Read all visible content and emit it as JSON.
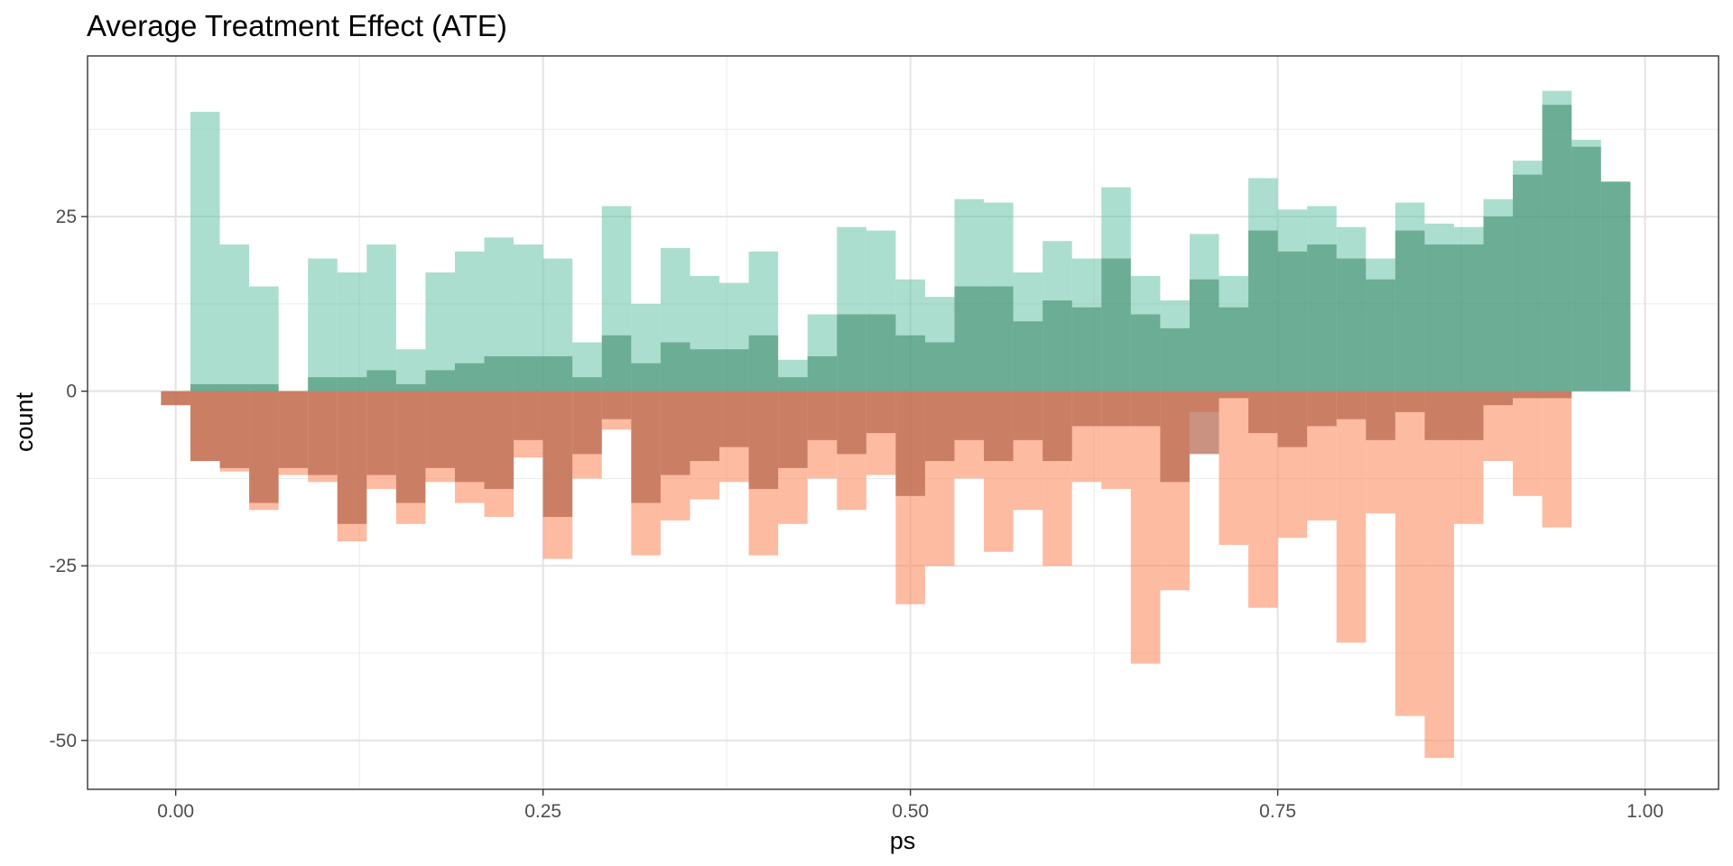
{
  "chart_data": {
    "type": "bar",
    "title": "Average Treatment Effect (ATE)",
    "xlabel": "ps",
    "ylabel": "count",
    "xlim": [
      -0.06,
      1.05
    ],
    "ylim": [
      -57,
      48
    ],
    "x_ticks": [
      {
        "value": 0.0,
        "label": "0.00"
      },
      {
        "value": 0.25,
        "label": "0.25"
      },
      {
        "value": 0.5,
        "label": "0.50"
      },
      {
        "value": 0.75,
        "label": "0.75"
      },
      {
        "value": 1.0,
        "label": "1.00"
      }
    ],
    "y_ticks": [
      {
        "value": 25,
        "label": "25"
      },
      {
        "value": 0,
        "label": "0"
      },
      {
        "value": -25,
        "label": "-25"
      },
      {
        "value": -50,
        "label": "-50"
      }
    ],
    "grid": true,
    "legend": "none",
    "bin_width": 0.02,
    "bin_starts": [
      -0.01,
      0.01,
      0.03,
      0.05,
      0.07,
      0.09,
      0.11,
      0.13,
      0.15,
      0.17,
      0.19,
      0.21,
      0.23,
      0.25,
      0.27,
      0.29,
      0.31,
      0.33,
      0.35,
      0.37,
      0.39,
      0.41,
      0.43,
      0.45,
      0.47,
      0.49,
      0.51,
      0.53,
      0.55,
      0.57,
      0.59,
      0.61,
      0.63,
      0.65,
      0.67,
      0.69,
      0.71,
      0.73,
      0.75,
      0.77,
      0.79,
      0.81,
      0.83,
      0.85,
      0.87,
      0.89,
      0.91,
      0.93,
      0.95,
      0.97
    ],
    "series": [
      {
        "key": "treated_weighted",
        "direction": "up",
        "color": "#66c2a5",
        "opacity": 0.55,
        "values": [
          0,
          40,
          21,
          15,
          0,
          19,
          17,
          21,
          6,
          17,
          20,
          22,
          21,
          19,
          7,
          26.5,
          12.5,
          20.5,
          16.5,
          15.5,
          20,
          4.5,
          11,
          23.5,
          23,
          16,
          13.5,
          27.5,
          27,
          17,
          21.5,
          19,
          29.2,
          16.5,
          13,
          22.5,
          16.5,
          30.5,
          26,
          26.5,
          23.5,
          19,
          27,
          24,
          23.5,
          27.5,
          33,
          43,
          36,
          30
        ]
      },
      {
        "key": "treated_unweighted",
        "direction": "up",
        "color": "#4a9277",
        "opacity": 0.65,
        "values": [
          0,
          1,
          1,
          1,
          0,
          2,
          2,
          3,
          1,
          3,
          4,
          5,
          5,
          5,
          2,
          8,
          4,
          7,
          6,
          6,
          8,
          2,
          5,
          11,
          11,
          8,
          7,
          15,
          15,
          10,
          13,
          12,
          19,
          11,
          9,
          16,
          12,
          23,
          20,
          21,
          19,
          16,
          23,
          21,
          21,
          25,
          31,
          41,
          35,
          30
        ]
      },
      {
        "key": "control_weighted",
        "direction": "down",
        "color": "#fc8d62",
        "opacity": 0.6,
        "values": [
          2,
          10,
          11.5,
          17,
          12,
          13,
          21.5,
          14,
          19,
          13,
          16,
          18,
          9.5,
          24,
          12.5,
          5.5,
          23.5,
          18.5,
          15.5,
          13,
          23.5,
          19,
          12.5,
          17,
          12,
          30.5,
          25,
          12.5,
          23,
          17,
          25,
          13,
          14,
          39,
          28.5,
          3,
          22,
          31,
          21,
          18.5,
          36,
          17.5,
          46.5,
          52.5,
          19,
          10,
          15,
          19.5,
          0,
          0
        ]
      },
      {
        "key": "control_unweighted",
        "direction": "down",
        "color": "#b4654b",
        "opacity": 0.7,
        "values": [
          2,
          10,
          11,
          16,
          11,
          12,
          19,
          12,
          16,
          11,
          13,
          14,
          7,
          18,
          9,
          4,
          16,
          12,
          10,
          8,
          14,
          11,
          7,
          9,
          6,
          15,
          10,
          7,
          10,
          7,
          10,
          5,
          5,
          5,
          13,
          9,
          1,
          6,
          8,
          5,
          4,
          7,
          3,
          7,
          7,
          2,
          1,
          1,
          0,
          0
        ]
      }
    ]
  }
}
